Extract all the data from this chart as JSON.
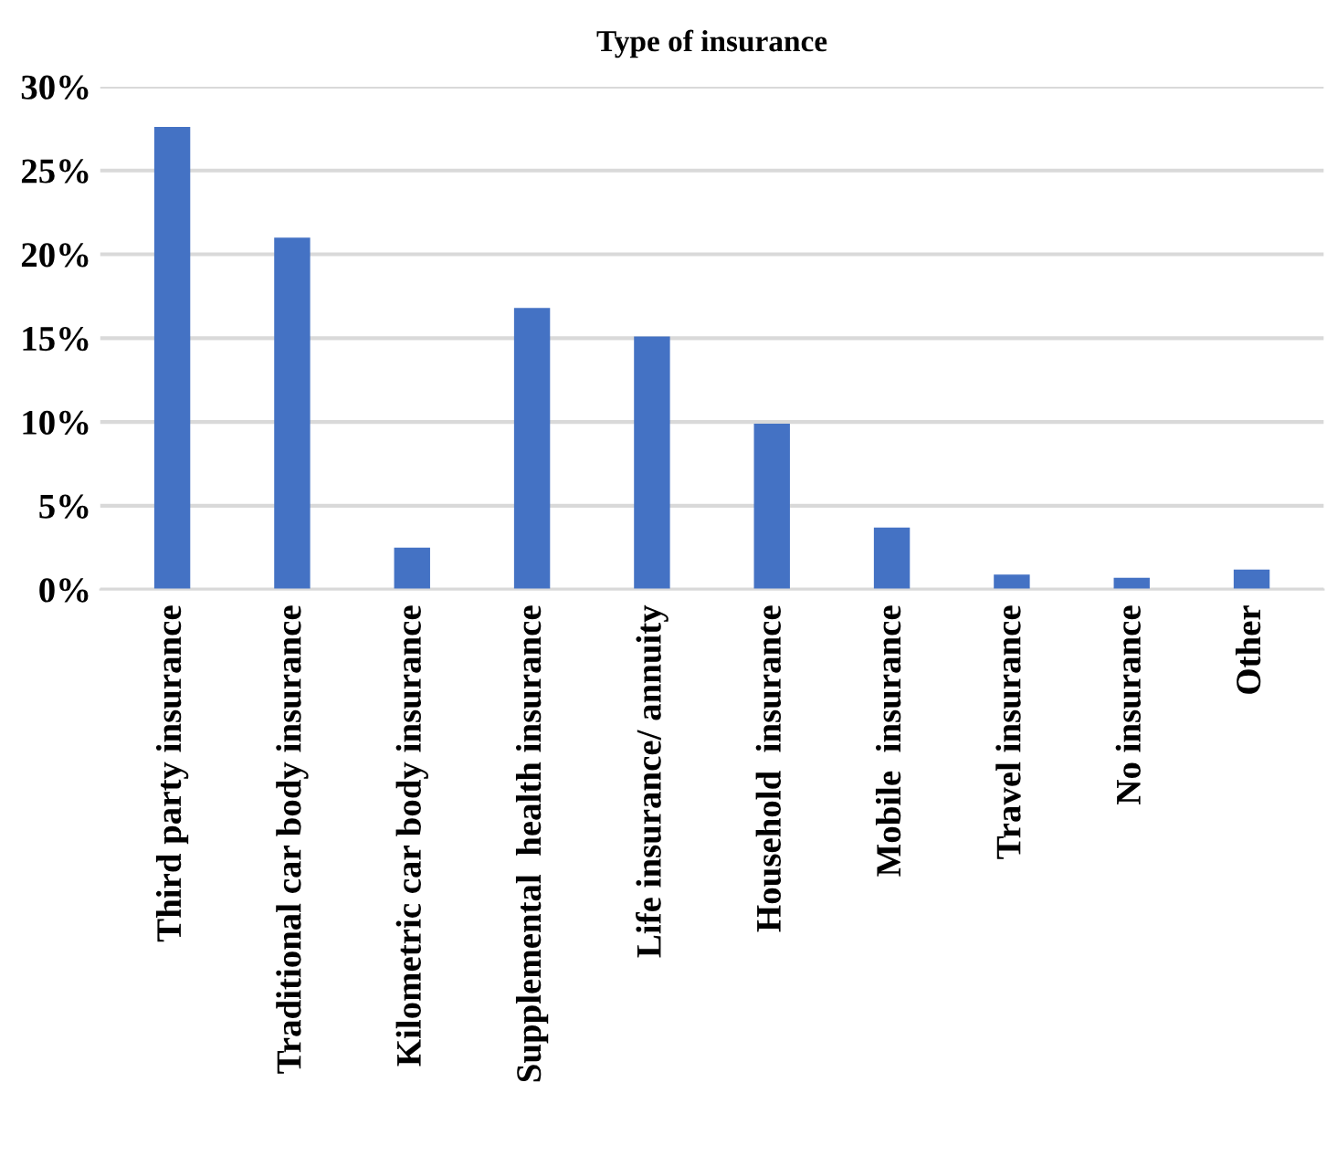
{
  "chart_data": {
    "type": "bar",
    "title": "Type of insurance",
    "categories": [
      "Third party insurance",
      "Traditional car body insurance",
      "Kilometric car body insurance",
      "Supplemental  health insurance",
      "Life insurance/ annuity",
      "Household  insurance",
      "Mobile  insurance",
      "Travel insurance",
      "No insurance",
      "Other"
    ],
    "values": [
      27.6,
      21.0,
      2.5,
      16.8,
      15.1,
      9.9,
      3.7,
      0.9,
      0.7,
      1.2
    ],
    "color": "#4472c4",
    "ylim": [
      0,
      30
    ],
    "yticks": [
      {
        "value": 0,
        "label": "0%"
      },
      {
        "value": 5,
        "label": "5%"
      },
      {
        "value": 10,
        "label": "10%"
      },
      {
        "value": 15,
        "label": "15%"
      },
      {
        "value": 20,
        "label": "20%"
      },
      {
        "value": 25,
        "label": "25%"
      },
      {
        "value": 30,
        "label": "30%"
      }
    ],
    "grid": "y"
  }
}
